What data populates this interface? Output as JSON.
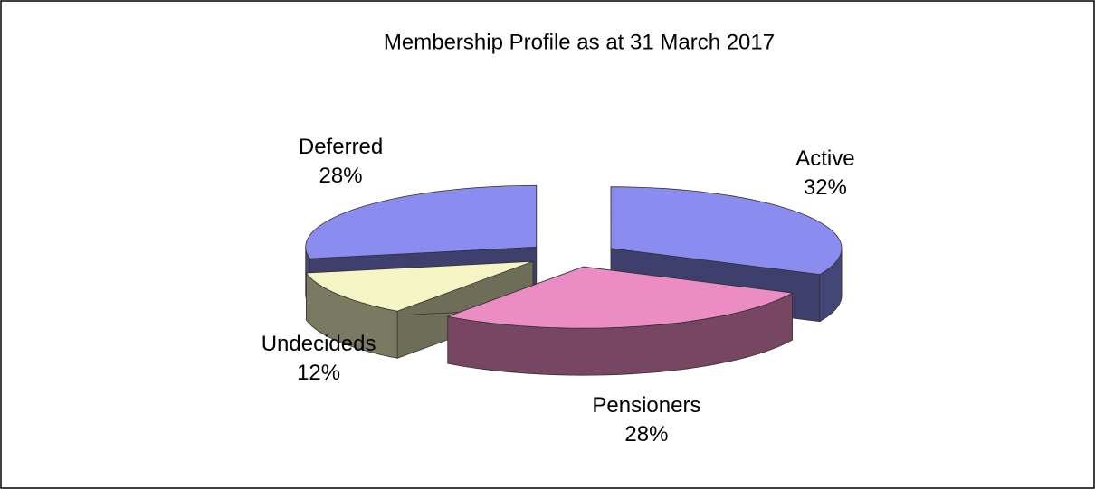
{
  "chart_data": {
    "type": "pie3d",
    "title": "Membership Profile as at 31 March 2017",
    "categories": [
      "Active",
      "Pensioners",
      "Undecideds",
      "Deferred"
    ],
    "values": [
      32,
      28,
      12,
      28
    ],
    "value_labels": [
      "32%",
      "28%",
      "12%",
      "28%"
    ],
    "colors": [
      "#8a8cf0",
      "#ec8cc4",
      "#f4f4c4",
      "#8a8cf0"
    ]
  }
}
